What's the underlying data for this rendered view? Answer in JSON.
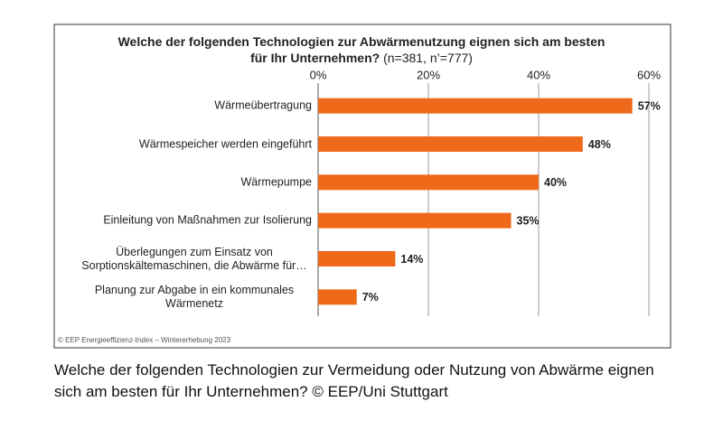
{
  "chart_data": {
    "type": "bar",
    "orientation": "horizontal",
    "title": "Welche der folgenden Technologien zur Abwärmenutzung eignen sich am besten für Ihr Unternehmen?",
    "subtitle": "(n=381, n’=777)",
    "categories": [
      "Wärmeübertragung",
      "Wärmespeicher werden eingeführt",
      "Wärmepumpe",
      "Einleitung von Maßnahmen zur Isolierung",
      "Überlegungen zum Einsatz von Sorptionskältemaschinen, die Abwärme für…",
      "Planung zur Abgabe in ein kommunales Wärmenetz"
    ],
    "values": [
      57,
      48,
      40,
      35,
      14,
      7
    ],
    "value_labels": [
      "57%",
      "48%",
      "40%",
      "35%",
      "14%",
      "7%"
    ],
    "color": "#ee6a1a",
    "xlim": [
      0,
      60
    ],
    "xticks": [
      {
        "value": 0,
        "label": "0%"
      },
      {
        "value": 20,
        "label": "20%"
      },
      {
        "value": 40,
        "label": "40%"
      },
      {
        "value": 60,
        "label": "60%"
      }
    ],
    "grid": true,
    "source": "© EEP Energieeffizienz-Index – Wintererhebung 2023"
  },
  "caption": "Welche der folgenden Technologien zur Vermeidung oder Nutzung von Abwärme eignen sich am besten für Ihr Unternehmen? © EEP/Uni Stuttgart"
}
